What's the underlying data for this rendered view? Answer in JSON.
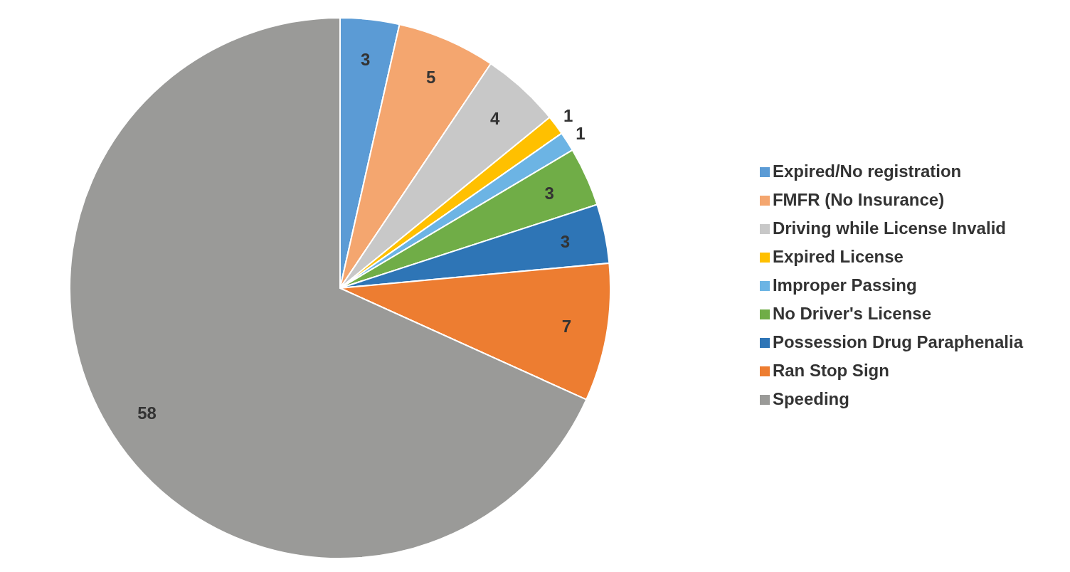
{
  "chart_data": {
    "type": "pie",
    "categories": [
      "Expired/No registration",
      "FMFR (No Insurance)",
      "Driving while License Invalid",
      "Expired License",
      "Improper Passing",
      "No Driver's License",
      "Possession Drug Paraphenalia",
      "Ran Stop Sign",
      "Speeding"
    ],
    "values": [
      3,
      5,
      4,
      1,
      1,
      3,
      3,
      7,
      58
    ],
    "colors": [
      "#5b9bd5",
      "#f4a66f",
      "#c8c8c8",
      "#ffc000",
      "#6cb4e4",
      "#70ad47",
      "#2e75b6",
      "#ed7d31",
      "#9a9a98"
    ],
    "data_labels": true,
    "legend": "right"
  }
}
